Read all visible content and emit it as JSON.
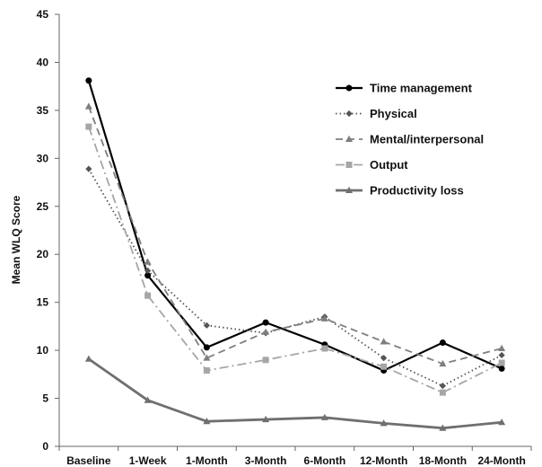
{
  "chart_data": {
    "type": "line",
    "title": "",
    "xlabel": "",
    "ylabel": "Mean WLQ Score",
    "ylim": [
      0,
      45
    ],
    "yticks": [
      0,
      5,
      10,
      15,
      20,
      25,
      30,
      35,
      40,
      45
    ],
    "grid": false,
    "legend_position": "top-right",
    "categories": [
      "Baseline",
      "1-Week",
      "1-Month",
      "3-Month",
      "6-Month",
      "12-Month",
      "18-Month",
      "24-Month"
    ],
    "series": [
      {
        "name": "Time management",
        "color": "#000000",
        "line_style": "solid",
        "marker": "circle",
        "values": [
          38.1,
          17.8,
          10.3,
          12.9,
          10.6,
          7.9,
          10.8,
          8.1
        ]
      },
      {
        "name": "Physical",
        "color": "#555555",
        "line_style": "dotted",
        "marker": "diamond",
        "values": [
          28.9,
          18.3,
          12.6,
          11.8,
          13.5,
          9.2,
          6.3,
          9.5
        ]
      },
      {
        "name": "Mental/interpersonal",
        "color": "#7f7f7f",
        "line_style": "dashed",
        "marker": "triangle",
        "values": [
          35.4,
          19.2,
          9.2,
          11.9,
          13.3,
          10.9,
          8.6,
          10.2
        ]
      },
      {
        "name": "Output",
        "color": "#a6a6a6",
        "line_style": "dash-dot",
        "marker": "square",
        "values": [
          33.3,
          15.7,
          7.9,
          9.0,
          10.2,
          8.3,
          5.6,
          8.7
        ]
      },
      {
        "name": "Productivity loss",
        "color": "#6f6f6f",
        "line_style": "solid",
        "marker": "triangle",
        "values": [
          9.1,
          4.8,
          2.6,
          2.8,
          3.0,
          2.4,
          1.9,
          2.5
        ]
      }
    ]
  }
}
